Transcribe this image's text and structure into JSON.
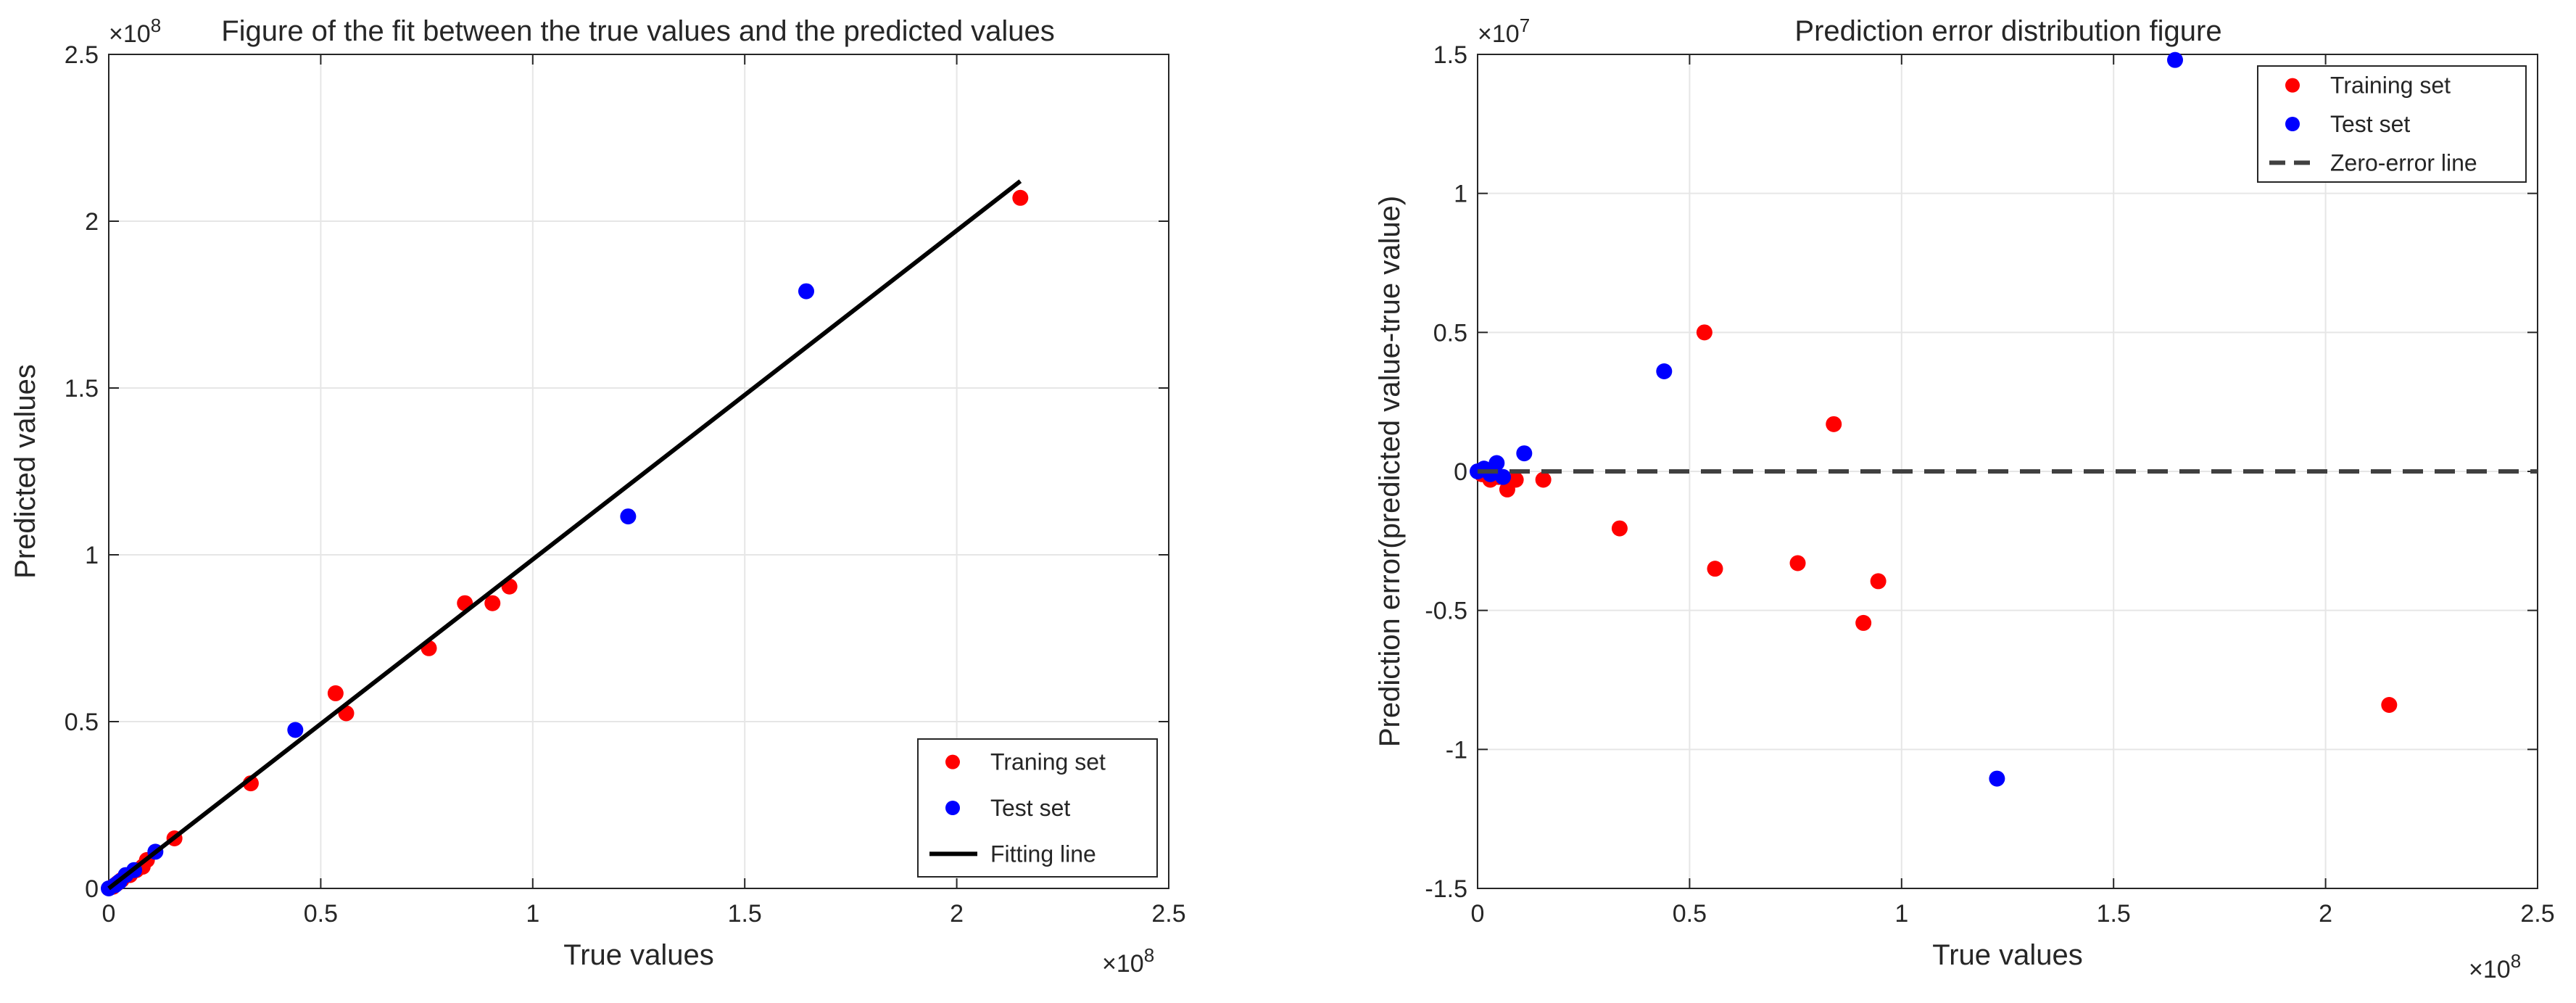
{
  "chart_data": [
    {
      "type": "scatter",
      "title": "Figure of the fit between the true values and the predicted values",
      "xlabel": "True values",
      "ylabel": "Predicted values",
      "xlim": [
        0,
        2.5
      ],
      "ylim": [
        0,
        2.5
      ],
      "x_exponent_label": "×10",
      "x_exponent": "8",
      "y_exponent_label": "×10",
      "y_exponent": "8",
      "xticks": [
        0,
        0.5,
        1,
        1.5,
        2,
        2.5
      ],
      "xtick_labels": [
        "0",
        "0.5",
        "1",
        "1.5",
        "2",
        "2.5"
      ],
      "yticks": [
        0,
        0.5,
        1,
        1.5,
        2,
        2.5
      ],
      "ytick_labels": [
        "0",
        "0.5",
        "1",
        "1.5",
        "2",
        "2.5"
      ],
      "grid": true,
      "legend_position": "bottom-right",
      "series": [
        {
          "name": "Traning set",
          "color": "#ff0000",
          "marker": "dot",
          "x": [
            0.01,
            0.02,
            0.03,
            0.05,
            0.065,
            0.08,
            0.09,
            0.155,
            0.335,
            0.535,
            0.56,
            0.755,
            0.84,
            0.905,
            0.945,
            2.15
          ],
          "y": [
            0.005,
            0.015,
            0.025,
            0.04,
            0.055,
            0.065,
            0.085,
            0.15,
            0.315,
            0.585,
            0.525,
            0.72,
            0.855,
            0.855,
            0.905,
            2.07
          ]
        },
        {
          "name": "Test set",
          "color": "#0000ff",
          "marker": "dot",
          "x": [
            0.0,
            0.015,
            0.025,
            0.04,
            0.06,
            0.11,
            0.44,
            1.225,
            1.645
          ],
          "y": [
            0.0,
            0.01,
            0.02,
            0.04,
            0.055,
            0.11,
            0.475,
            1.115,
            1.79
          ]
        },
        {
          "name": "Fitting line",
          "color": "#000000",
          "marker": "line",
          "x": [
            0.0,
            2.15
          ],
          "y": [
            0.0,
            2.12
          ]
        }
      ]
    },
    {
      "type": "scatter",
      "title": "Prediction error distribution figure",
      "xlabel": "True values",
      "ylabel": "Prediction error(predicted value-true value)",
      "xlim": [
        0,
        2.5
      ],
      "ylim": [
        -1.5,
        1.5
      ],
      "x_exponent_label": "×10",
      "x_exponent": "8",
      "y_exponent_label": "×10",
      "y_exponent": "7",
      "xticks": [
        0,
        0.5,
        1,
        1.5,
        2,
        2.5
      ],
      "xtick_labels": [
        "0",
        "0.5",
        "1",
        "1.5",
        "2",
        "2.5"
      ],
      "yticks": [
        -1.5,
        -1,
        -0.5,
        0,
        0.5,
        1,
        1.5
      ],
      "ytick_labels": [
        "-1.5",
        "-1",
        "-0.5",
        "0",
        "0.5",
        "1",
        "1.5"
      ],
      "grid": true,
      "legend_position": "top-right",
      "series": [
        {
          "name": "Training set",
          "color": "#ff0000",
          "marker": "dot",
          "x": [
            0.01,
            0.03,
            0.05,
            0.07,
            0.09,
            0.155,
            0.335,
            0.535,
            0.56,
            0.755,
            0.84,
            0.91,
            0.945,
            2.15
          ],
          "y": [
            -0.01,
            -0.03,
            -0.02,
            -0.065,
            -0.03,
            -0.03,
            -0.205,
            0.5,
            -0.35,
            -0.33,
            0.17,
            -0.545,
            -0.395,
            -0.84
          ]
        },
        {
          "name": "Test set",
          "color": "#0000ff",
          "marker": "dot",
          "x": [
            0.0,
            0.015,
            0.03,
            0.045,
            0.06,
            0.11,
            0.44,
            1.225,
            1.645
          ],
          "y": [
            0.0,
            0.01,
            -0.01,
            0.03,
            -0.02,
            0.065,
            0.36,
            -1.105,
            1.48
          ]
        },
        {
          "name": "Zero-error line",
          "color": "#404040",
          "marker": "dashed",
          "x": [
            0.0,
            2.5
          ],
          "y": [
            0.0,
            0.0
          ]
        }
      ]
    }
  ]
}
